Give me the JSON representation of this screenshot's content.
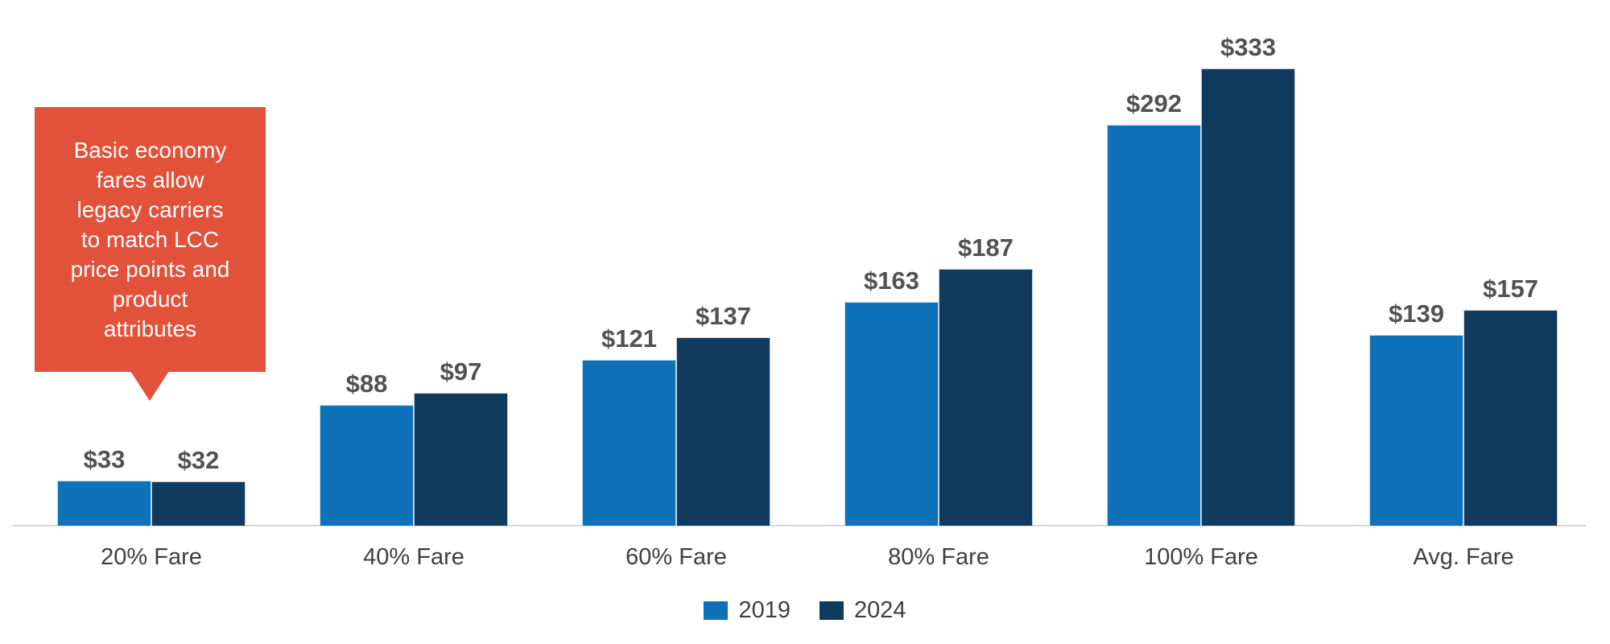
{
  "chart_data": {
    "type": "bar",
    "categories": [
      "20% Fare",
      "40% Fare",
      "60% Fare",
      "80% Fare",
      "100% Fare",
      "Avg. Fare"
    ],
    "series": [
      {
        "name": "2019",
        "color": "#0D72B9",
        "values": [
          33,
          88,
          121,
          163,
          292,
          139
        ]
      },
      {
        "name": "2024",
        "color": "#103A5E",
        "values": [
          32,
          97,
          137,
          187,
          333,
          157
        ]
      }
    ],
    "value_prefix": "$",
    "value_labels_shown": true,
    "ylim": [
      0,
      360
    ],
    "grid": false,
    "legend_position": "bottom-center",
    "colors": {
      "axis_line": "#D6D6D6",
      "value_label": "#525252",
      "category_label": "#3F3F3F",
      "legend_label": "#3F3F3F",
      "background": "#FFFFFF"
    },
    "annotation": {
      "text": "Basic economy fares allow legacy carriers to match LCC price points and product attributes",
      "lines": [
        "Basic economy",
        "fares allow",
        "legacy carriers",
        "to match LCC",
        "price points and",
        "product",
        "attributes"
      ],
      "bg_color": "#E2513A",
      "text_color": "#FFFFFF",
      "shape": "speech-bubble-pointing-down",
      "points_to": "20% Fare group"
    }
  }
}
